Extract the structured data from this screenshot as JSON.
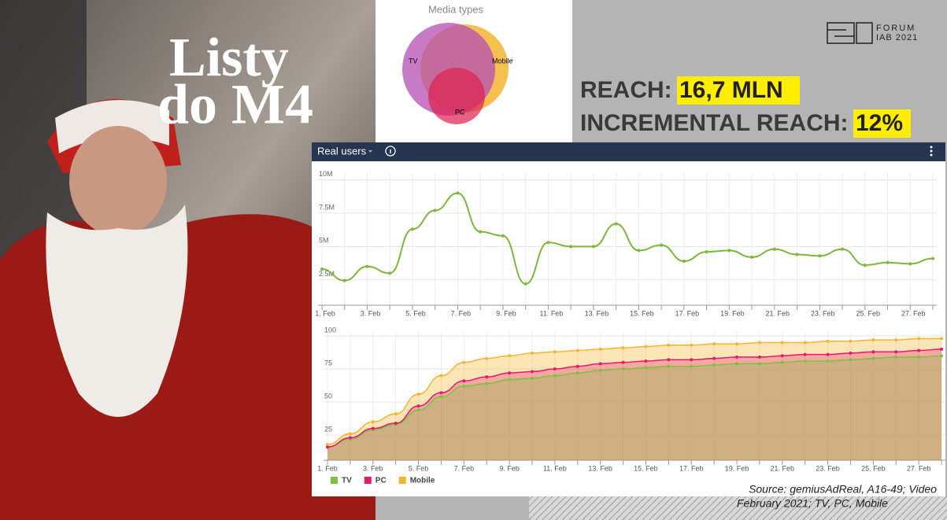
{
  "poster": {
    "title_line1": "Listy",
    "title_line2": "do M4"
  },
  "logo": {
    "line1": "FORUM",
    "line2": "IAB 2021"
  },
  "reach": {
    "label": "REACH:",
    "value": "16,7 MLN"
  },
  "incremental_reach": {
    "label": "INCREMENTAL REACH:",
    "value": "12%"
  },
  "venn": {
    "title": "Media types",
    "labels": [
      "TV",
      "Mobile",
      "PC"
    ]
  },
  "panel": {
    "title": "Real users"
  },
  "source": {
    "line1": "Source: gemiusAdReal, A16-49; Video",
    "line2": "February 2021; TV, PC, Mobile"
  },
  "chart_data": [
    {
      "type": "line",
      "color": "#7cb83a",
      "categories": [
        "1. Feb",
        null,
        "3. Feb",
        null,
        "5. Feb",
        null,
        "7. Feb",
        null,
        "9. Feb",
        null,
        "11. Feb",
        null,
        "13. Feb",
        null,
        "15. Feb",
        null,
        "17. Feb",
        null,
        "19. Feb",
        null,
        "21. Feb",
        null,
        "23. Feb",
        null,
        "25. Feb",
        null,
        "27. Feb",
        null
      ],
      "values": [
        3.3,
        2.45,
        3.5,
        3.0,
        6.3,
        7.7,
        9.0,
        6.1,
        5.8,
        2.2,
        5.3,
        5.0,
        5.0,
        6.7,
        4.7,
        5.1,
        3.9,
        4.6,
        4.7,
        4.2,
        4.8,
        4.4,
        4.3,
        4.8,
        3.6,
        3.8,
        3.7,
        4.1
      ],
      "ylim": [
        0.6,
        10.5
      ],
      "yticks": [
        {
          "value": 2.5,
          "label": "2.5M"
        },
        {
          "value": 5,
          "label": "5M"
        },
        {
          "value": 7.5,
          "label": "7.5M"
        },
        {
          "value": 10,
          "label": "10M"
        }
      ],
      "grid": true
    },
    {
      "type": "area",
      "categories": [
        "1. Feb",
        null,
        "3. Feb",
        null,
        "5. Feb",
        null,
        "7. Feb",
        null,
        "9. Feb",
        null,
        "11. Feb",
        null,
        "13. Feb",
        null,
        "15. Feb",
        null,
        "17. Feb",
        null,
        "19. Feb",
        null,
        "21. Feb",
        null,
        "23. Feb",
        null,
        "25. Feb",
        null,
        "27. Feb",
        null
      ],
      "series": [
        {
          "name": "TV",
          "color": "#7cc242",
          "values": [
            16,
            22,
            29,
            33,
            44,
            54,
            62,
            64,
            67,
            68,
            70,
            72,
            74,
            75,
            76,
            77,
            77,
            78,
            79,
            79,
            80,
            81,
            81,
            82,
            83,
            84,
            84,
            85
          ]
        },
        {
          "name": "PC",
          "color": "#e5196e",
          "values": [
            16,
            23,
            30,
            34,
            47,
            57,
            66,
            69,
            72,
            73,
            75,
            77,
            79,
            80,
            81,
            82,
            82,
            83,
            84,
            84,
            85,
            86,
            86,
            87,
            88,
            88,
            89,
            90
          ]
        },
        {
          "name": "Mobile",
          "color": "#f5b532",
          "values": [
            18,
            26,
            35,
            41,
            56,
            70,
            80,
            83,
            85,
            87,
            88,
            89,
            90,
            91,
            92,
            93,
            93,
            94,
            94,
            95,
            95,
            95,
            96,
            96,
            97,
            97,
            98,
            98
          ]
        }
      ],
      "ylim": [
        6,
        103
      ],
      "yticks": [
        25,
        50,
        75,
        100
      ],
      "grid": true,
      "legend": "bottom-left"
    }
  ]
}
